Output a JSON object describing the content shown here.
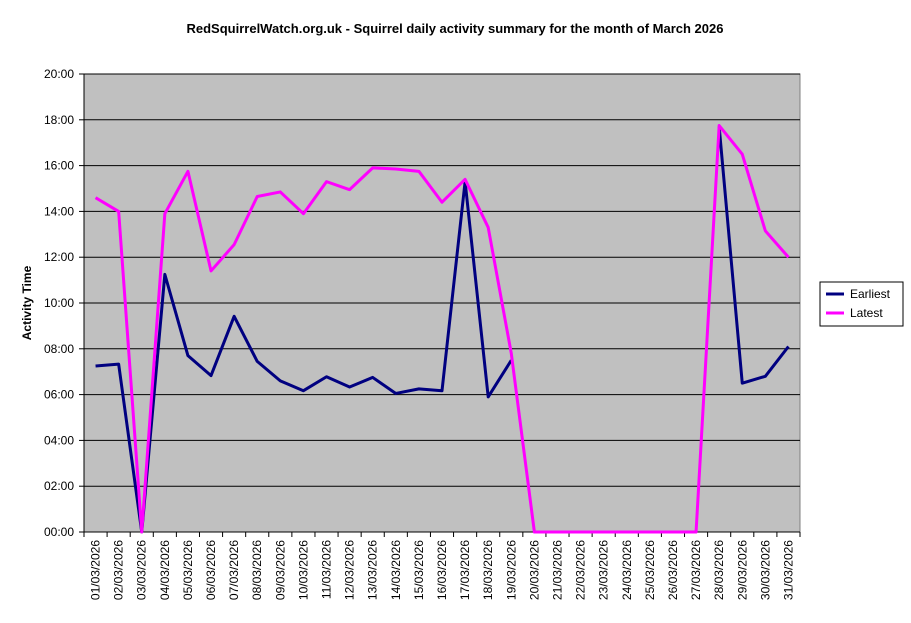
{
  "chart_data": {
    "type": "line",
    "title": "RedSquirrelWatch.org.uk - Squirrel daily activity summary for the month of March 2026",
    "xlabel": "",
    "ylabel": "Activity Time",
    "ylim": [
      0,
      20
    ],
    "y_tick_labels": [
      "00:00",
      "02:00",
      "04:00",
      "06:00",
      "08:00",
      "10:00",
      "12:00",
      "14:00",
      "16:00",
      "18:00",
      "20:00"
    ],
    "categories": [
      "01/03/2026",
      "02/03/2026",
      "03/03/2026",
      "04/03/2026",
      "05/03/2026",
      "06/03/2026",
      "07/03/2026",
      "08/03/2026",
      "09/03/2026",
      "10/03/2026",
      "11/03/2026",
      "12/03/2026",
      "13/03/2026",
      "14/03/2026",
      "15/03/2026",
      "16/03/2026",
      "17/03/2026",
      "18/03/2026",
      "19/03/2026",
      "20/03/2026",
      "21/03/2026",
      "22/03/2026",
      "23/03/2026",
      "24/03/2026",
      "25/03/2026",
      "26/03/2026",
      "27/03/2026",
      "28/03/2026",
      "29/03/2026",
      "30/03/2026",
      "31/03/2026"
    ],
    "series": [
      {
        "name": "Earliest",
        "color": "#000080",
        "values": [
          7.25,
          7.33,
          0.0,
          11.25,
          7.7,
          6.83,
          9.42,
          7.45,
          6.6,
          6.17,
          6.78,
          6.33,
          6.75,
          6.05,
          6.25,
          6.17,
          15.3,
          5.9,
          7.5,
          null,
          null,
          null,
          null,
          null,
          null,
          null,
          null,
          17.7,
          6.5,
          6.8,
          8.1
        ]
      },
      {
        "name": "Latest",
        "color": "#ff00ff",
        "values": [
          14.6,
          14.0,
          0.0,
          13.9,
          15.75,
          11.4,
          12.55,
          14.65,
          14.85,
          13.9,
          15.3,
          14.95,
          15.9,
          15.85,
          15.75,
          14.4,
          15.4,
          13.3,
          7.8,
          0.0,
          0.0,
          0.0,
          0.0,
          0.0,
          0.0,
          0.0,
          0.0,
          17.75,
          16.5,
          13.15,
          12.0
        ]
      }
    ],
    "grid": true,
    "plot_background": "#c0c0c0",
    "legend_position": "right"
  }
}
